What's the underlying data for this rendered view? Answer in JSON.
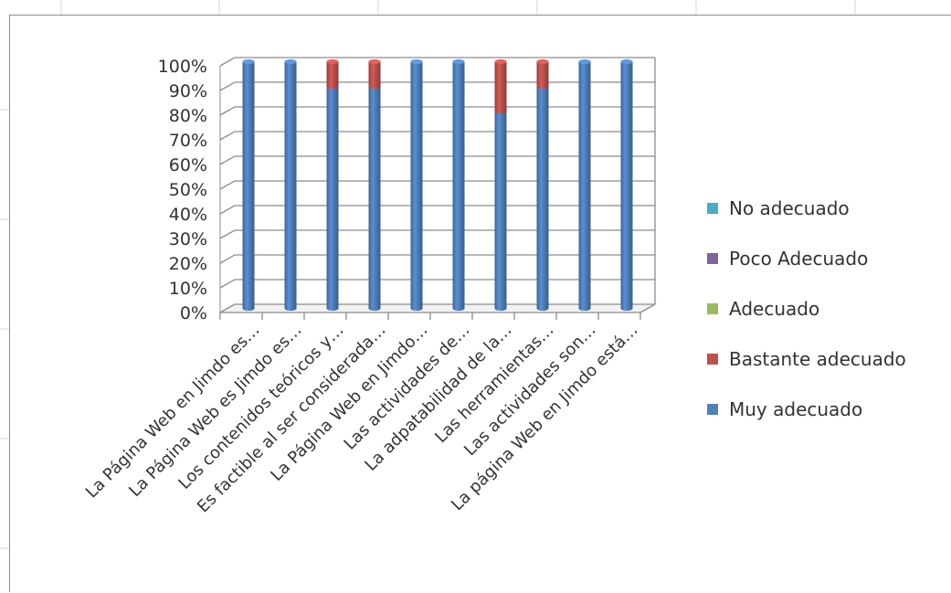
{
  "chart_data": {
    "type": "bar",
    "stacked": true,
    "percent_stacked": true,
    "three_d": true,
    "categories": [
      "La Página Web en Jimdo es…",
      "La Página Web es Jimdo es…",
      "Los contenidos teóricos y…",
      "Es factible al ser considerada…",
      "La Página Web en Jimdo…",
      "Las actividades de…",
      "La adpatabilidad de la…",
      "Las herramientas…",
      "Las actividades son…",
      "La página Web en Jimdo está…"
    ],
    "series": [
      {
        "name": "Muy adecuado",
        "color": "#4f81bd",
        "values": [
          100,
          100,
          90,
          90,
          100,
          100,
          80,
          90,
          100,
          100
        ]
      },
      {
        "name": "Bastante adecuado",
        "color": "#c0504d",
        "values": [
          0,
          0,
          10,
          10,
          0,
          0,
          20,
          10,
          0,
          0
        ]
      },
      {
        "name": "Adecuado",
        "color": "#9bbb59",
        "values": [
          0,
          0,
          0,
          0,
          0,
          0,
          0,
          0,
          0,
          0
        ]
      },
      {
        "name": "Poco Adecuado",
        "color": "#8064a2",
        "values": [
          0,
          0,
          0,
          0,
          0,
          0,
          0,
          0,
          0,
          0
        ]
      },
      {
        "name": "No adecuado",
        "color": "#4bacc6",
        "values": [
          0,
          0,
          0,
          0,
          0,
          0,
          0,
          0,
          0,
          0
        ]
      }
    ],
    "legend_order": [
      "No adecuado",
      "Poco Adecuado",
      "Adecuado",
      "Bastante adecuado",
      "Muy adecuado"
    ],
    "y_ticks": [
      "0%",
      "10%",
      "20%",
      "30%",
      "40%",
      "50%",
      "60%",
      "70%",
      "80%",
      "90%",
      "100%"
    ],
    "ylim": [
      0,
      100
    ],
    "grid": true,
    "legend_position": "right"
  }
}
